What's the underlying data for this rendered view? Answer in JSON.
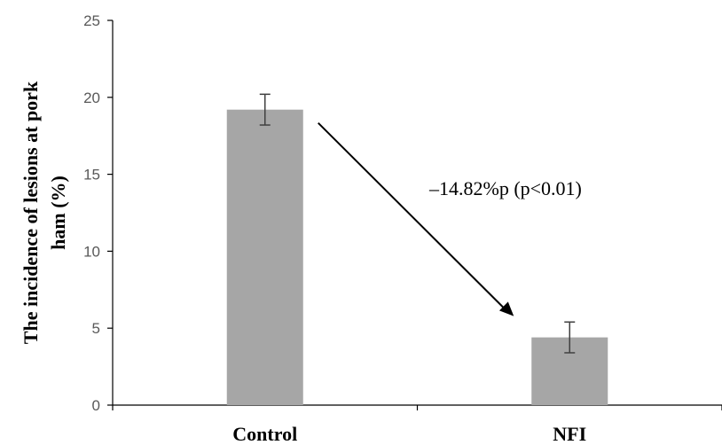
{
  "chart_data": {
    "type": "bar",
    "categories": [
      "Control",
      "NFI"
    ],
    "values": [
      19.2,
      4.4
    ],
    "error": [
      1.0,
      1.0
    ],
    "title": "",
    "xlabel": "",
    "ylabel_lines": [
      "The incidence of lesions at pork",
      "ham (%)"
    ],
    "ylim": [
      0,
      25
    ],
    "yticks": [
      0,
      5,
      10,
      15,
      20,
      25
    ],
    "ytick_labels": [
      "0",
      "5",
      "10",
      "15",
      "20",
      "25"
    ],
    "grid": false,
    "legend": "none",
    "bar_color": "#a6a6a6",
    "axis_color": "#000000",
    "annotation": "–14.82%p (p<0.01)"
  }
}
